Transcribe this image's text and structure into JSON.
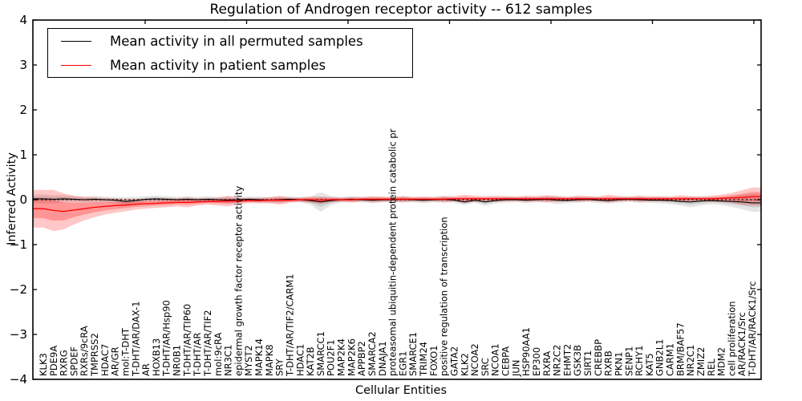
{
  "figure": {
    "background": "#ffffff",
    "frame_color": "#000000"
  },
  "legend": {
    "position": "upper left",
    "entries": [
      {
        "label": "Mean activity in all permuted samples",
        "color": "#000000"
      },
      {
        "label": "Mean activity in patient samples",
        "color": "#ff0000"
      }
    ]
  },
  "chart_data": {
    "type": "line",
    "title": "Regulation of Androgen receptor activity -- 612 samples",
    "xlabel": "Cellular Entities",
    "ylabel": "Inferred Activity",
    "ylim": [
      -4,
      4
    ],
    "grid": false,
    "legend_position": "upper left",
    "zero_reference_line": 0,
    "yticks": [
      {
        "v": 4,
        "label": "4"
      },
      {
        "v": 3,
        "label": "3"
      },
      {
        "v": 2,
        "label": "2"
      },
      {
        "v": 1,
        "label": "1"
      },
      {
        "v": 0,
        "label": "0"
      },
      {
        "v": -1,
        "label": "−1"
      },
      {
        "v": -2,
        "label": "−2"
      },
      {
        "v": -3,
        "label": "−3"
      },
      {
        "v": -4,
        "label": "−4"
      }
    ],
    "categories": [
      "KLK3",
      "PDE9A",
      "RXRG",
      "SPDEF",
      "RXRs/9cRA",
      "TMPRSS2",
      "HDAC7",
      "AR/GR",
      "mol:T-DHT",
      "T-DHT/AR/DAX-1",
      "AR",
      "HOXB13",
      "T-DHT/AR/Hsp90",
      "NR0B1",
      "T-DHT/AR/TIP60",
      "T-DHT/AR",
      "T-DHT/AR/TIF2",
      "mol:9cRA",
      "NR3C1",
      "epidermal growth factor receptor activity",
      "MYST2",
      "MAPK14",
      "MAPK8",
      "SRY",
      "T-DHT/AR/TIF2/CARM1",
      "HDAC1",
      "KAT2B",
      "SMARCC1",
      "POU2F1",
      "MAP2K4",
      "MAP2K6",
      "APPBP2",
      "SMARCA2",
      "DNAJA1",
      "proteasomal ubiquitin-dependent protein catabolic pr",
      "EGR1",
      "SMARCE1",
      "TRIM24",
      "FOXO1",
      "positive regulation of transcription",
      "GATA2",
      "KLK2",
      "NCOA2",
      "SRC",
      "NCOA1",
      "CEBPA",
      "JUN",
      "HSP90AA1",
      "EP300",
      "RXRA",
      "NR2C2",
      "EHMT2",
      "GSK3B",
      "SIRT1",
      "CREBBP",
      "RXRB",
      "PKN1",
      "SENP1",
      "RCHY1",
      "KAT5",
      "GNB2L1",
      "CARM1",
      "BRM/BAF57",
      "NR2C1",
      "ZMIZ2",
      "REL",
      "MDM2",
      "cell proliferation",
      "AR/RACK1/Src",
      "T-DHT/AR/RACK1/Src"
    ],
    "series": [
      {
        "name": "Mean activity in all permuted samples",
        "color": "#000000",
        "band_color": "rgba(0,0,0,0.10)",
        "values": [
          0.02,
          0.01,
          0.02,
          0.01,
          0.0,
          0.01,
          0.0,
          -0.01,
          -0.04,
          -0.02,
          0.01,
          0.02,
          0.01,
          0.0,
          0.01,
          0.0,
          0.01,
          0.0,
          -0.01,
          0.0,
          0.01,
          0.0,
          -0.01,
          0.0,
          0.01,
          0.0,
          -0.02,
          -0.05,
          -0.02,
          0.0,
          0.01,
          0.0,
          -0.01,
          0.0,
          0.0,
          0.01,
          0.0,
          -0.01,
          0.0,
          0.01,
          -0.01,
          -0.05,
          -0.01,
          -0.05,
          -0.02,
          0.0,
          0.0,
          -0.01,
          0.0,
          0.01,
          -0.01,
          -0.02,
          0.0,
          0.01,
          -0.01,
          -0.02,
          0.0,
          0.01,
          0.0,
          -0.01,
          -0.01,
          -0.02,
          -0.04,
          -0.05,
          -0.03,
          -0.02,
          -0.03,
          -0.04,
          -0.05,
          -0.07
        ],
        "sigma": [
          0.05,
          0.045,
          0.04,
          0.035,
          0.035,
          0.04,
          0.035,
          0.035,
          0.05,
          0.04,
          0.035,
          0.035,
          0.035,
          0.03,
          0.035,
          0.03,
          0.035,
          0.03,
          0.04,
          0.03,
          0.03,
          0.035,
          0.03,
          0.035,
          0.03,
          0.03,
          0.045,
          0.11,
          0.05,
          0.03,
          0.035,
          0.03,
          0.035,
          0.03,
          0.03,
          0.035,
          0.03,
          0.035,
          0.03,
          0.035,
          0.03,
          0.035,
          0.03,
          0.045,
          0.03,
          0.035,
          0.03,
          0.035,
          0.03,
          0.035,
          0.045,
          0.03,
          0.035,
          0.03,
          0.035,
          0.03,
          0.035,
          0.03,
          0.035,
          0.03,
          0.035,
          0.04,
          0.045,
          0.06,
          0.05,
          0.04,
          0.045,
          0.06,
          0.08,
          0.1
        ]
      },
      {
        "name": "Mean activity in patient samples",
        "color": "#ff0000",
        "band_color": "rgba(255,0,0,0.22)",
        "values": [
          -0.2,
          -0.24,
          -0.26,
          -0.23,
          -0.2,
          -0.17,
          -0.15,
          -0.13,
          -0.12,
          -0.1,
          -0.09,
          -0.08,
          -0.07,
          -0.06,
          -0.06,
          -0.05,
          -0.04,
          -0.04,
          -0.03,
          -0.03,
          -0.02,
          -0.02,
          -0.01,
          -0.01,
          -0.01,
          0.0,
          0.0,
          -0.01,
          0.0,
          0.0,
          0.0,
          0.01,
          0.01,
          0.01,
          0.01,
          0.01,
          0.01,
          0.01,
          0.01,
          0.01,
          0.02,
          0.02,
          0.02,
          0.02,
          0.02,
          0.02,
          0.02,
          0.02,
          0.02,
          0.02,
          0.02,
          0.02,
          0.02,
          0.02,
          0.02,
          0.02,
          0.02,
          0.02,
          0.02,
          0.02,
          0.02,
          0.02,
          0.02,
          0.02,
          0.02,
          0.02,
          0.03,
          0.04,
          0.05,
          0.07
        ],
        "sigma": [
          0.21,
          0.23,
          0.2,
          0.16,
          0.13,
          0.11,
          0.09,
          0.08,
          0.07,
          0.06,
          0.055,
          0.05,
          0.05,
          0.045,
          0.055,
          0.04,
          0.035,
          0.045,
          0.06,
          0.035,
          0.03,
          0.03,
          0.035,
          0.05,
          0.03,
          0.025,
          0.035,
          0.04,
          0.03,
          0.025,
          0.03,
          0.025,
          0.035,
          0.03,
          0.025,
          0.035,
          0.025,
          0.03,
          0.025,
          0.035,
          0.03,
          0.045,
          0.035,
          0.03,
          0.035,
          0.03,
          0.025,
          0.035,
          0.03,
          0.04,
          0.03,
          0.025,
          0.035,
          0.03,
          0.025,
          0.045,
          0.03,
          0.025,
          0.035,
          0.03,
          0.03,
          0.025,
          0.04,
          0.03,
          0.025,
          0.035,
          0.04,
          0.055,
          0.08,
          0.1
        ]
      }
    ]
  }
}
